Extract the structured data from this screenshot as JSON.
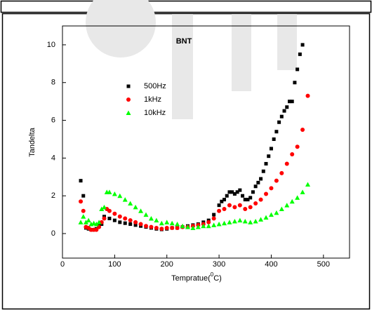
{
  "chart_data": {
    "type": "scatter",
    "title": "BNT",
    "xlabel": [
      "Tempratue(",
      "0",
      "C)"
    ],
    "ylabel": "Tandelta",
    "xlim": [
      0,
      550
    ],
    "ylim": [
      -1.3,
      11
    ],
    "xticks": [
      0,
      100,
      200,
      300,
      400,
      500
    ],
    "yticks": [
      0,
      2,
      4,
      6,
      8,
      10
    ],
    "series": [
      {
        "name": "500Hz",
        "color": "#000000",
        "marker": "square",
        "x": [
          35,
          40,
          45,
          50,
          55,
          60,
          65,
          70,
          75,
          80,
          90,
          100,
          110,
          120,
          130,
          140,
          150,
          160,
          170,
          180,
          190,
          200,
          210,
          220,
          230,
          240,
          250,
          260,
          270,
          280,
          290,
          300,
          305,
          310,
          315,
          320,
          325,
          330,
          335,
          340,
          345,
          350,
          355,
          360,
          365,
          370,
          375,
          380,
          385,
          390,
          395,
          400,
          405,
          410,
          415,
          420,
          425,
          430,
          435,
          440,
          445,
          450,
          455,
          460
        ],
        "values": [
          2.8,
          2.0,
          0.3,
          0.25,
          0.2,
          0.2,
          0.25,
          0.4,
          0.5,
          0.9,
          0.8,
          0.7,
          0.6,
          0.55,
          0.5,
          0.45,
          0.4,
          0.35,
          0.3,
          0.25,
          0.22,
          0.25,
          0.3,
          0.3,
          0.35,
          0.4,
          0.45,
          0.5,
          0.6,
          0.7,
          1.0,
          1.5,
          1.7,
          1.8,
          2.0,
          2.2,
          2.2,
          2.1,
          2.2,
          2.3,
          2.0,
          1.8,
          1.8,
          1.9,
          2.2,
          2.5,
          2.7,
          2.9,
          3.3,
          3.7,
          4.1,
          4.5,
          5.0,
          5.4,
          5.9,
          6.2,
          6.5,
          6.7,
          7.0,
          7.0,
          8.0,
          8.7,
          9.5,
          10.0
        ]
      },
      {
        "name": "1kHz",
        "color": "#ff0000",
        "marker": "circle",
        "x": [
          35,
          40,
          45,
          50,
          55,
          60,
          65,
          70,
          75,
          80,
          85,
          90,
          100,
          110,
          120,
          130,
          140,
          150,
          160,
          170,
          180,
          190,
          200,
          210,
          220,
          230,
          240,
          250,
          260,
          270,
          280,
          290,
          300,
          310,
          320,
          330,
          340,
          350,
          360,
          370,
          380,
          390,
          400,
          410,
          420,
          430,
          440,
          450,
          460,
          470
        ],
        "values": [
          1.7,
          1.2,
          0.35,
          0.3,
          0.2,
          0.2,
          0.2,
          0.35,
          0.6,
          0.8,
          1.3,
          1.2,
          1.05,
          0.9,
          0.8,
          0.7,
          0.6,
          0.5,
          0.4,
          0.35,
          0.3,
          0.25,
          0.3,
          0.3,
          0.3,
          0.35,
          0.35,
          0.4,
          0.45,
          0.5,
          0.6,
          0.8,
          1.2,
          1.3,
          1.5,
          1.4,
          1.5,
          1.3,
          1.4,
          1.6,
          1.8,
          2.1,
          2.4,
          2.8,
          3.2,
          3.7,
          4.2,
          4.6,
          5.5,
          7.3
        ]
      },
      {
        "name": "10kHz",
        "color": "#00ff00",
        "marker": "triangle",
        "x": [
          35,
          40,
          45,
          50,
          55,
          60,
          65,
          70,
          75,
          80,
          85,
          90,
          100,
          110,
          120,
          130,
          140,
          150,
          160,
          170,
          180,
          190,
          200,
          210,
          220,
          230,
          240,
          250,
          260,
          270,
          280,
          290,
          300,
          310,
          320,
          330,
          340,
          350,
          360,
          370,
          380,
          390,
          400,
          410,
          420,
          430,
          440,
          450,
          460,
          470
        ],
        "values": [
          0.6,
          0.9,
          0.6,
          0.7,
          0.5,
          0.55,
          0.5,
          0.6,
          1.3,
          1.4,
          2.2,
          2.2,
          2.1,
          2.0,
          1.8,
          1.6,
          1.4,
          1.2,
          1.0,
          0.8,
          0.7,
          0.55,
          0.6,
          0.55,
          0.5,
          0.4,
          0.35,
          0.3,
          0.35,
          0.4,
          0.4,
          0.45,
          0.5,
          0.55,
          0.6,
          0.65,
          0.7,
          0.65,
          0.6,
          0.65,
          0.75,
          0.85,
          1.0,
          1.1,
          1.3,
          1.5,
          1.7,
          1.9,
          2.2,
          2.6
        ]
      }
    ]
  }
}
